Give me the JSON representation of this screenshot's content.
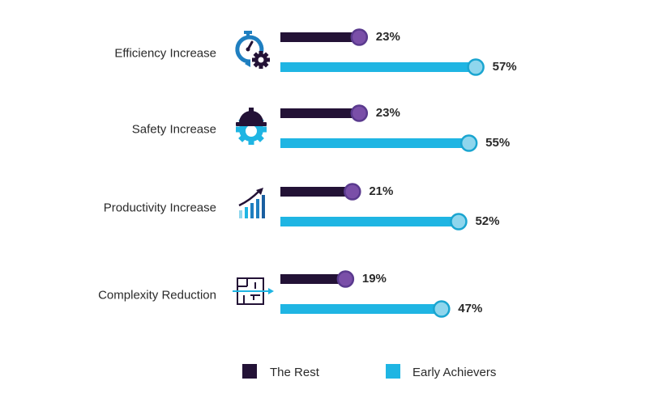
{
  "chart_data": {
    "type": "bar",
    "orientation": "horizontal",
    "categories": [
      "Efficiency Increase",
      "Safety Increase",
      "Productivity Increase",
      "Complexity Reduction"
    ],
    "category_icons": [
      "stopwatch-gear-icon",
      "hard-hat-gear-icon",
      "rising-bars-arrow-icon",
      "maze-arrow-icon"
    ],
    "series": [
      {
        "name": "The Rest",
        "values": [
          23,
          23,
          21,
          19
        ],
        "value_labels": [
          "23%",
          "23%",
          "21%",
          "19%"
        ],
        "color": "#231236",
        "marker_color": "#7a4fa8",
        "marker_border": "#5a3a8e"
      },
      {
        "name": "Early Achievers",
        "values": [
          57,
          55,
          52,
          47
        ],
        "value_labels": [
          "57%",
          "55%",
          "52%",
          "47%"
        ],
        "color": "#1fb5e3",
        "marker_color": "#8fd6ed",
        "marker_border": "#1aa5d0"
      }
    ],
    "unit": "%",
    "xlim": [
      0,
      100
    ],
    "legend_position": "bottom",
    "grid": false
  },
  "colors": {
    "icon_dark": "#231236",
    "icon_blue": "#1f7fc0",
    "icon_light": "#1fb5e3"
  }
}
